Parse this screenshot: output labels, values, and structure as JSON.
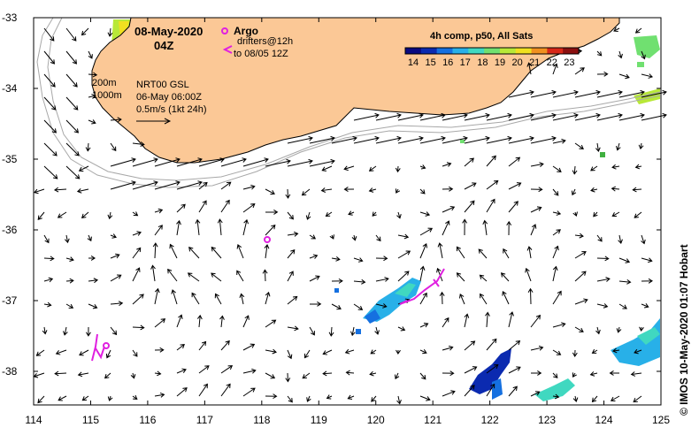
{
  "map": {
    "date": "08-May-2020",
    "time": "04Z",
    "legend": {
      "argo_label": "Argo",
      "drifters_line1": "drifters@12h",
      "drifters_line2": "to 08/05 12Z"
    },
    "isobaths": [
      "200m",
      "1000m"
    ],
    "product_line1": "NRT00 GSL",
    "product_line2": "06-May 06:00Z",
    "scale_label": "0.5m/s (1kt 24h)",
    "colorbar": {
      "title": "4h comp, p50, All Sats",
      "ticks": [
        "14",
        "15",
        "16",
        "17",
        "18",
        "19",
        "20",
        "21",
        "22",
        "23"
      ],
      "colors": [
        "#0a0a80",
        "#0b2ab0",
        "#1570e0",
        "#28b0e8",
        "#40d8c0",
        "#70e070",
        "#b8e838",
        "#f0e020",
        "#f09020",
        "#d82818",
        "#8a1010"
      ]
    },
    "credit": "© IMOS 10-May-2020 01:07 Hobart",
    "x_ticks": [
      "114",
      "115",
      "116",
      "117",
      "118",
      "119",
      "120",
      "121",
      "122",
      "123",
      "124",
      "125"
    ],
    "y_ticks": [
      "-33",
      "-34",
      "-35",
      "-36",
      "-37",
      "-38"
    ],
    "colors": {
      "land": "#fbc896",
      "coast": "#000000",
      "isobath": "#a8a8a8",
      "drifter": "#e020e0",
      "argo": "#e020e0"
    }
  }
}
